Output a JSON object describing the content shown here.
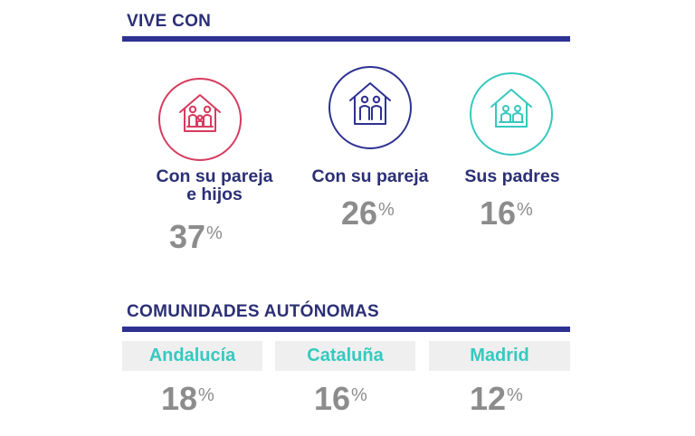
{
  "vive_con": {
    "title": "VIVE CON",
    "items": [
      {
        "label_line1": "Con su pareja",
        "label_line2": "e hijos",
        "value": "37",
        "unit": "%",
        "icon": "house-family-icon",
        "color": "#d63b5e"
      },
      {
        "label_line1": "Con su pareja",
        "label_line2": "",
        "value": "26",
        "unit": "%",
        "icon": "house-couple-icon",
        "color": "#2e3192"
      },
      {
        "label_line1": "Sus padres",
        "label_line2": "",
        "value": "16",
        "unit": "%",
        "icon": "house-parents-icon",
        "color": "#35c9bf"
      }
    ]
  },
  "comunidades": {
    "title": "COMUNIDADES AUTÓNOMAS",
    "items": [
      {
        "name": "Andalucía",
        "value": "18",
        "unit": "%"
      },
      {
        "name": "Cataluña",
        "value": "16",
        "unit": "%"
      },
      {
        "name": "Madrid",
        "value": "12",
        "unit": "%"
      }
    ]
  }
}
